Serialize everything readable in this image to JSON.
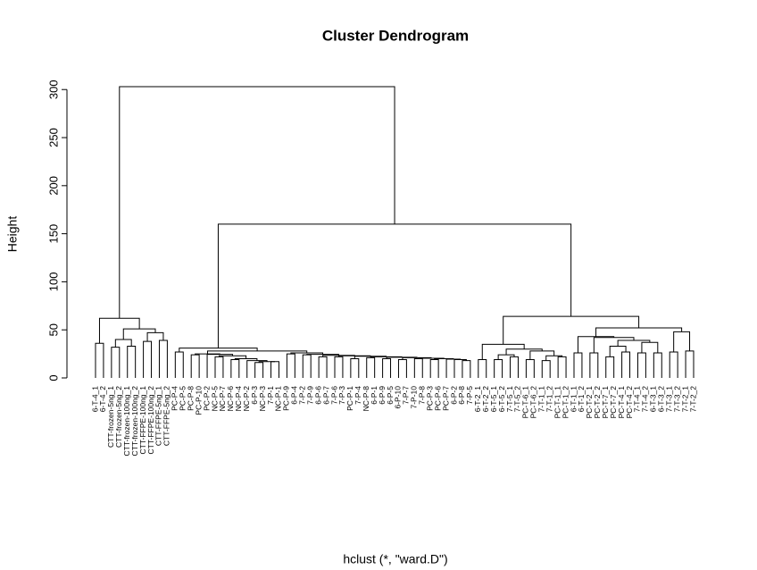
{
  "chart_data": {
    "type": "dendrogram",
    "title": "Cluster Dendrogram",
    "y_label": "Height",
    "x_label": "hclust (*, \"ward.D\")",
    "ylim": [
      0,
      303
    ],
    "yticks": [
      0,
      50,
      100,
      150,
      200,
      250,
      300
    ],
    "color": "#000000",
    "tree": {
      "height": 303,
      "children": [
        {
          "height": 62,
          "children": [
            {
              "height": 36,
              "children": [
                "6-T-4_1",
                "6-T-4_2"
              ]
            },
            {
              "height": 51,
              "children": [
                {
                  "height": 40,
                  "children": [
                    {
                      "height": 32,
                      "children": [
                        "CTT-frozen-5ng_1",
                        "CTT-frozen-5ng_2"
                      ]
                    },
                    {
                      "height": 33,
                      "children": [
                        "CTT-frozen-100ng_1",
                        "CTT-frozen-100ng_2"
                      ]
                    }
                  ]
                },
                {
                  "height": 47,
                  "children": [
                    {
                      "height": 38,
                      "children": [
                        "CTT-FFPE-100ng_1",
                        "CTT-FFPE-100ng_2"
                      ]
                    },
                    {
                      "height": 39,
                      "children": [
                        "CTT-FFPE-5ng_1",
                        "CTT-FFPE-5ng_2"
                      ]
                    }
                  ]
                }
              ]
            }
          ]
        },
        {
          "height": 160,
          "children": [
            {
              "height": 31,
              "children": [
                {
                  "height": 27,
                  "children": [
                    "PC-P-4",
                    "PC-P-5"
                  ]
                },
                {
                  "height": 28,
                  "children": [
                    {
                      "height": 25,
                      "children": [
                        {
                          "height": 24,
                          "children": [
                            "PC-P-8",
                            "PC-P-10"
                          ]
                        },
                        {
                          "height": 24.5,
                          "children": [
                            "PC-P-2",
                            {
                              "height": 23,
                              "children": [
                                {
                                  "height": 22,
                                  "children": [
                                    "NC-P-5",
                                    "NC-P-7"
                                  ]
                                },
                                {
                                  "height": 20,
                                  "children": [
                                    {
                                      "height": 19,
                                      "children": [
                                        "NC-P-6",
                                        "NC-P-4"
                                      ]
                                    },
                                    {
                                      "height": 18,
                                      "children": [
                                        "NC-P-2",
                                        {
                                          "height": 17,
                                          "children": [
                                            {
                                              "height": 16,
                                              "children": [
                                                "6-P-3",
                                                "NC-P-3"
                                              ]
                                            },
                                            {
                                              "height": 17,
                                              "children": [
                                                "7-P-1",
                                                "NC-P-1"
                                              ]
                                            }
                                          ]
                                        }
                                      ]
                                    }
                                  ]
                                }
                              ]
                            }
                          ]
                        }
                      ]
                    },
                    {
                      "height": 26,
                      "children": [
                        {
                          "height": 25,
                          "children": [
                            "PC-P-9",
                            "6-P-4"
                          ]
                        },
                        {
                          "height": 24.5,
                          "children": [
                            {
                              "height": 24,
                              "children": [
                                "7-P-2",
                                "7-P-9"
                              ]
                            },
                            {
                              "height": 23.5,
                              "children": [
                                {
                                  "height": 22,
                                  "children": [
                                    "6-P-6",
                                    "6-P-7"
                                  ]
                                },
                                {
                                  "height": 23,
                                  "children": [
                                    {
                                      "height": 22,
                                      "children": [
                                        "7-P-6",
                                        "7-P-3"
                                      ]
                                    },
                                    {
                                      "height": 22.5,
                                      "children": [
                                        {
                                          "height": 20,
                                          "children": [
                                            "PC-P-1",
                                            "7-P-4"
                                          ]
                                        },
                                        {
                                          "height": 22,
                                          "children": [
                                            {
                                              "height": 21,
                                              "children": [
                                                "NC-P-8",
                                                "6-P-1"
                                              ]
                                            },
                                            {
                                              "height": 21.5,
                                              "children": [
                                                {
                                                  "height": 20,
                                                  "children": [
                                                    "6-P-9",
                                                    "6-P-5"
                                                  ]
                                                },
                                                {
                                                  "height": 21,
                                                  "children": [
                                                    {
                                                      "height": 19,
                                                      "children": [
                                                        "6-P-10",
                                                        "7-P-7"
                                                      ]
                                                    },
                                                    {
                                                      "height": 20.5,
                                                      "children": [
                                                        {
                                                          "height": 20,
                                                          "children": [
                                                            "7-P-10",
                                                            "7-P-8"
                                                          ]
                                                        },
                                                        {
                                                          "height": 20,
                                                          "children": [
                                                            {
                                                              "height": 19,
                                                              "children": [
                                                                "PC-P-3",
                                                                "PC-P-6"
                                                              ]
                                                            },
                                                            {
                                                              "height": 19.5,
                                                              "children": [
                                                                "PC-P-7",
                                                                {
                                                                  "height": 19,
                                                                  "children": [
                                                                    "6-P-2",
                                                                    {
                                                                      "height": 18,
                                                                      "children": [
                                                                        "6-P-8",
                                                                        "7-P-5"
                                                                      ]
                                                                    }
                                                                  ]
                                                                }
                                                              ]
                                                            }
                                                          ]
                                                        }
                                                      ]
                                                    }
                                                  ]
                                                }
                                              ]
                                            }
                                          ]
                                        }
                                      ]
                                    }
                                  ]
                                }
                              ]
                            }
                          ]
                        }
                      ]
                    }
                  ]
                }
              ]
            },
            {
              "height": 64,
              "children": [
                {
                  "height": 35,
                  "children": [
                    {
                      "height": 19,
                      "children": [
                        "6-T-2_1",
                        "6-T-2_2"
                      ]
                    },
                    {
                      "height": 30,
                      "children": [
                        {
                          "height": 24,
                          "children": [
                            {
                              "height": 19,
                              "children": [
                                "6-T-5_1",
                                "6-T-5_2"
                              ]
                            },
                            {
                              "height": 22,
                              "children": [
                                "7-T-5_1",
                                "7-T-5_2"
                              ]
                            }
                          ]
                        },
                        {
                          "height": 28,
                          "children": [
                            {
                              "height": 19,
                              "children": [
                                "PC-T-6_1",
                                "PC-T-6_2"
                              ]
                            },
                            {
                              "height": 23,
                              "children": [
                                {
                                  "height": 18,
                                  "children": [
                                    "7-T-1_1",
                                    "7-T-1_2"
                                  ]
                                },
                                {
                                  "height": 22,
                                  "children": [
                                    "PC-T-1_1",
                                    "PC-T-1_2"
                                  ]
                                }
                              ]
                            }
                          ]
                        }
                      ]
                    }
                  ]
                },
                {
                  "height": 52,
                  "children": [
                    {
                      "height": 43,
                      "children": [
                        {
                          "height": 26,
                          "children": [
                            "6-T-1_1",
                            "6-T-1_2"
                          ]
                        },
                        {
                          "height": 42,
                          "children": [
                            {
                              "height": 26,
                              "children": [
                                "PC-T-2_1",
                                "PC-T-2_2"
                              ]
                            },
                            {
                              "height": 39,
                              "children": [
                                {
                                  "height": 33,
                                  "children": [
                                    {
                                      "height": 22,
                                      "children": [
                                        "PC-T-7_1",
                                        "PC-T-7_2"
                                      ]
                                    },
                                    {
                                      "height": 27,
                                      "children": [
                                        "PC-T-4_1",
                                        "PC-T-4_2"
                                      ]
                                    }
                                  ]
                                },
                                {
                                  "height": 37,
                                  "children": [
                                    {
                                      "height": 26,
                                      "children": [
                                        "7-T-4_1",
                                        "7-T-4_2"
                                      ]
                                    },
                                    {
                                      "height": 26,
                                      "children": [
                                        "6-T-3_1",
                                        "6-T-3_2"
                                      ]
                                    }
                                  ]
                                }
                              ]
                            }
                          ]
                        }
                      ]
                    },
                    {
                      "height": 48,
                      "children": [
                        {
                          "height": 27,
                          "children": [
                            "7-T-3_1",
                            "7-T-3_2"
                          ]
                        },
                        {
                          "height": 28,
                          "children": [
                            "7-T-2_1",
                            "7-T-2_2"
                          ]
                        }
                      ]
                    }
                  ]
                }
              ]
            }
          ]
        }
      ]
    }
  }
}
